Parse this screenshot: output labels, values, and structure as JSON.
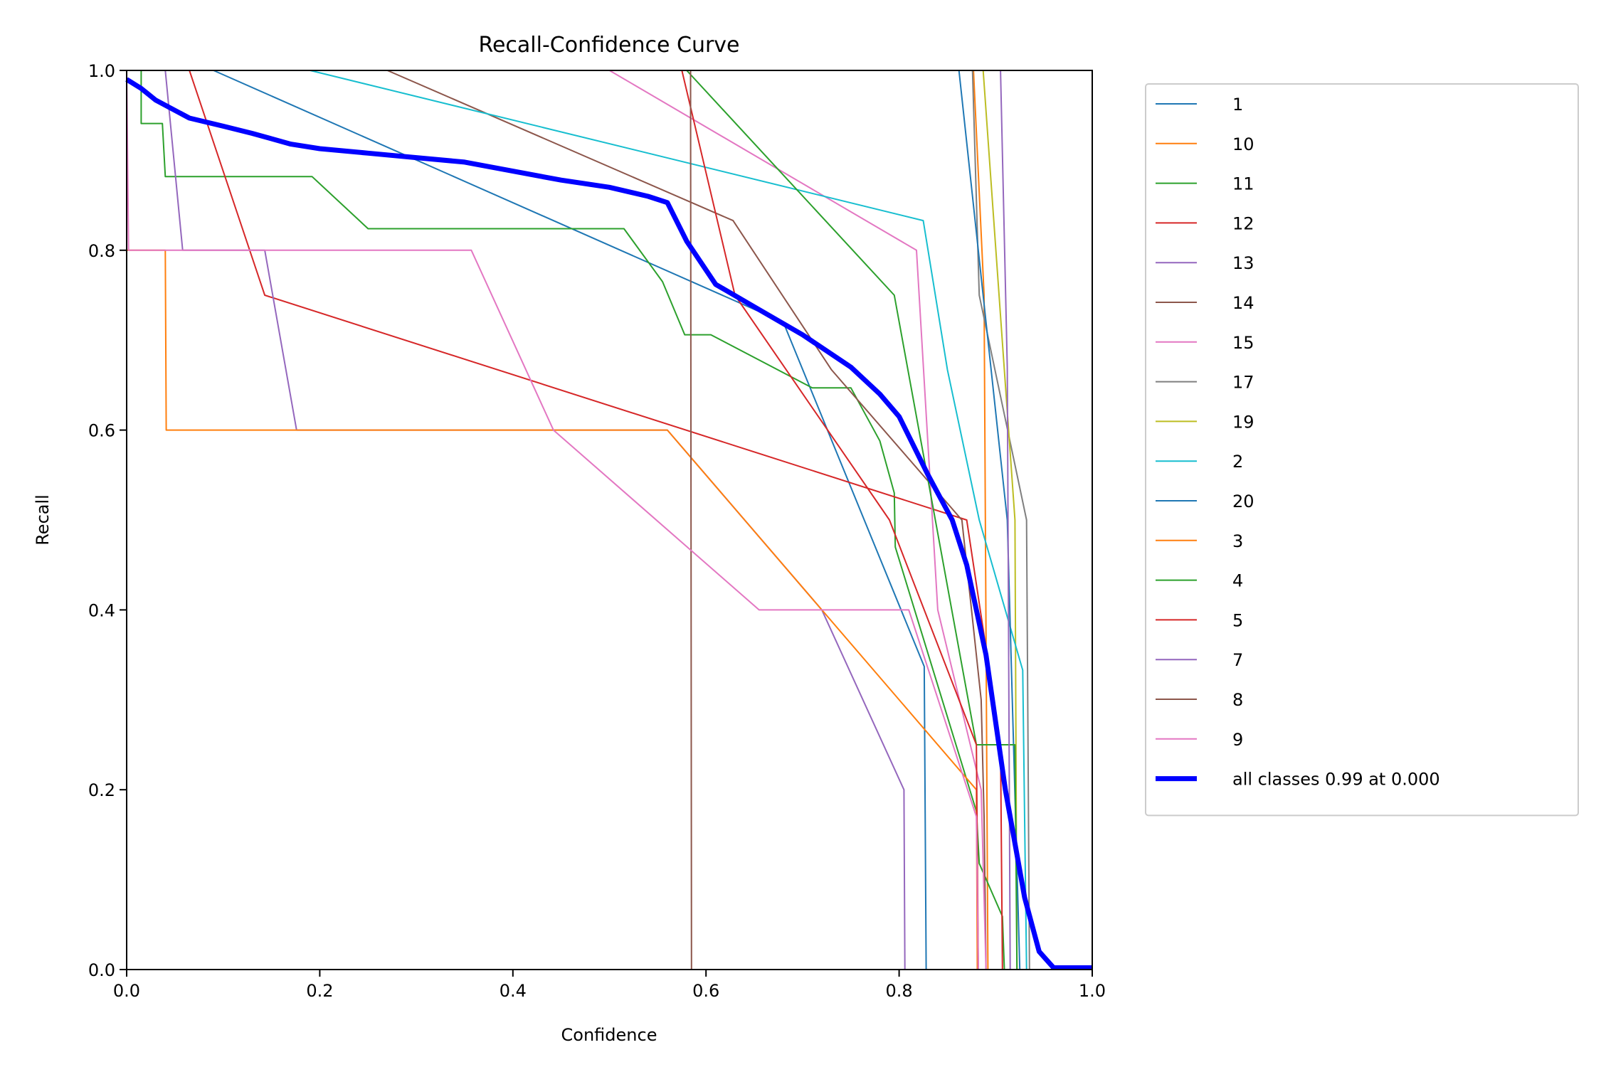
{
  "chart_data": {
    "type": "line",
    "title": "Recall-Confidence Curve",
    "xlabel": "Confidence",
    "ylabel": "Recall",
    "xlim": [
      0,
      1
    ],
    "ylim": [
      0,
      1
    ],
    "xticks": [
      "0.0",
      "0.2",
      "0.4",
      "0.6",
      "0.8",
      "1.0"
    ],
    "yticks": [
      "0.0",
      "0.2",
      "0.4",
      "0.6",
      "0.8",
      "1.0"
    ],
    "grid": false,
    "legend_position": "outside-right",
    "series": [
      {
        "name": "1",
        "color": "#1f77b4",
        "points": [
          [
            0.09,
            1.0
          ],
          [
            0.68,
            0.72
          ],
          [
            0.826,
            0.337
          ],
          [
            0.828,
            0.0
          ]
        ]
      },
      {
        "name": "10",
        "color": "#ff7f0e",
        "points": [
          [
            0.877,
            1.0
          ],
          [
            0.888,
            0.75
          ],
          [
            0.892,
            0.0
          ]
        ]
      },
      {
        "name": "11",
        "color": "#2ca02c",
        "points": [
          [
            0.015,
            1.0
          ],
          [
            0.015,
            0.941
          ],
          [
            0.037,
            0.941
          ],
          [
            0.04,
            0.882
          ],
          [
            0.192,
            0.882
          ],
          [
            0.25,
            0.824
          ],
          [
            0.515,
            0.824
          ],
          [
            0.555,
            0.765
          ],
          [
            0.578,
            0.706
          ],
          [
            0.605,
            0.706
          ],
          [
            0.71,
            0.647
          ],
          [
            0.75,
            0.647
          ],
          [
            0.78,
            0.588
          ],
          [
            0.795,
            0.53
          ],
          [
            0.796,
            0.47
          ],
          [
            0.88,
            0.176
          ],
          [
            0.883,
            0.118
          ],
          [
            0.907,
            0.059
          ],
          [
            0.909,
            0.0
          ]
        ]
      },
      {
        "name": "12",
        "color": "#d62728",
        "points": [
          [
            0.065,
            1.0
          ],
          [
            0.143,
            0.75
          ],
          [
            0.87,
            0.5
          ],
          [
            0.905,
            0.25
          ],
          [
            0.907,
            0.0
          ]
        ]
      },
      {
        "name": "13",
        "color": "#9467bd",
        "points": [
          [
            0.04,
            1.0
          ],
          [
            0.058,
            0.8
          ],
          [
            0.143,
            0.8
          ],
          [
            0.176,
            0.6
          ],
          [
            0.56,
            0.6
          ],
          [
            0.72,
            0.4
          ],
          [
            0.805,
            0.2
          ],
          [
            0.806,
            0.0
          ]
        ]
      },
      {
        "name": "14",
        "color": "#8c564b",
        "points": [
          [
            0.27,
            1.0
          ],
          [
            0.628,
            0.833
          ],
          [
            0.73,
            0.667
          ],
          [
            0.865,
            0.5
          ],
          [
            0.885,
            0.3
          ],
          [
            0.888,
            0.17
          ],
          [
            0.89,
            0.0
          ]
        ]
      },
      {
        "name": "15",
        "color": "#e377c2",
        "points": [
          [
            0.5,
            1.0
          ],
          [
            0.818,
            0.8
          ],
          [
            0.84,
            0.4
          ],
          [
            0.885,
            0.2
          ],
          [
            0.89,
            0.0
          ]
        ]
      },
      {
        "name": "17",
        "color": "#7f7f7f",
        "points": [
          [
            0.876,
            1.0
          ],
          [
            0.883,
            0.75
          ],
          [
            0.932,
            0.5
          ],
          [
            0.935,
            0.0
          ]
        ]
      },
      {
        "name": "19",
        "color": "#bcbd22",
        "points": [
          [
            0.887,
            1.0
          ],
          [
            0.92,
            0.5
          ],
          [
            0.922,
            0.0
          ]
        ]
      },
      {
        "name": "2",
        "color": "#17becf",
        "points": [
          [
            0.19,
            1.0
          ],
          [
            0.825,
            0.833
          ],
          [
            0.85,
            0.667
          ],
          [
            0.883,
            0.5
          ],
          [
            0.928,
            0.333
          ],
          [
            0.932,
            0.0
          ]
        ]
      },
      {
        "name": "20",
        "color": "#1f77b4",
        "points": [
          [
            0.862,
            1.0
          ],
          [
            0.912,
            0.5
          ],
          [
            0.925,
            0.0
          ]
        ]
      },
      {
        "name": "3",
        "color": "#ff7f0e",
        "points": [
          [
            0.0,
            0.8
          ],
          [
            0.04,
            0.8
          ],
          [
            0.041,
            0.6
          ],
          [
            0.56,
            0.6
          ],
          [
            0.88,
            0.2
          ],
          [
            0.881,
            0.0
          ]
        ]
      },
      {
        "name": "4",
        "color": "#2ca02c",
        "points": [
          [
            0.58,
            1.0
          ],
          [
            0.795,
            0.75
          ],
          [
            0.88,
            0.25
          ],
          [
            0.92,
            0.25
          ],
          [
            0.922,
            0.0
          ]
        ]
      },
      {
        "name": "5",
        "color": "#d62728",
        "points": [
          [
            0.575,
            1.0
          ],
          [
            0.63,
            0.75
          ],
          [
            0.79,
            0.5
          ],
          [
            0.88,
            0.25
          ],
          [
            0.882,
            0.0
          ]
        ]
      },
      {
        "name": "7",
        "color": "#9467bd",
        "points": [
          [
            0.905,
            1.0
          ],
          [
            0.912,
            0.67
          ],
          [
            0.915,
            0.0
          ]
        ]
      },
      {
        "name": "8",
        "color": "#8c564b",
        "points": [
          [
            0.584,
            1.0
          ],
          [
            0.585,
            0.0
          ],
          [
            1.0,
            0.0
          ]
        ]
      },
      {
        "name": "9",
        "color": "#e377c2",
        "points": [
          [
            0.0,
            1.0
          ],
          [
            0.002,
            0.8
          ],
          [
            0.357,
            0.8
          ],
          [
            0.442,
            0.6
          ],
          [
            0.655,
            0.4
          ],
          [
            0.81,
            0.4
          ],
          [
            0.88,
            0.17
          ],
          [
            0.882,
            0.0
          ]
        ]
      },
      {
        "name": "all classes 0.99 at 0.000",
        "color": "#0000ff",
        "bold": true,
        "points": [
          [
            0.0,
            0.99
          ],
          [
            0.015,
            0.98
          ],
          [
            0.03,
            0.967
          ],
          [
            0.065,
            0.947
          ],
          [
            0.1,
            0.938
          ],
          [
            0.13,
            0.93
          ],
          [
            0.17,
            0.918
          ],
          [
            0.2,
            0.913
          ],
          [
            0.25,
            0.908
          ],
          [
            0.3,
            0.903
          ],
          [
            0.35,
            0.898
          ],
          [
            0.4,
            0.888
          ],
          [
            0.45,
            0.878
          ],
          [
            0.5,
            0.87
          ],
          [
            0.54,
            0.86
          ],
          [
            0.56,
            0.853
          ],
          [
            0.58,
            0.81
          ],
          [
            0.61,
            0.762
          ],
          [
            0.65,
            0.737
          ],
          [
            0.7,
            0.706
          ],
          [
            0.75,
            0.67
          ],
          [
            0.78,
            0.64
          ],
          [
            0.8,
            0.615
          ],
          [
            0.83,
            0.55
          ],
          [
            0.855,
            0.5
          ],
          [
            0.87,
            0.45
          ],
          [
            0.89,
            0.35
          ],
          [
            0.91,
            0.2
          ],
          [
            0.93,
            0.08
          ],
          [
            0.945,
            0.02
          ],
          [
            0.96,
            0.002
          ],
          [
            1.0,
            0.002
          ]
        ]
      }
    ]
  }
}
